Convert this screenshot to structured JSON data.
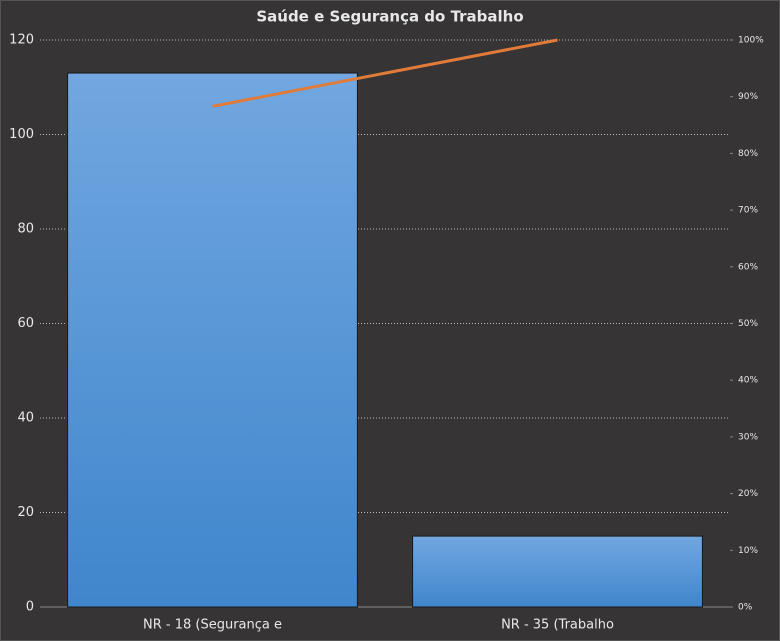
{
  "chart_data": {
    "type": "pareto",
    "title": "Saúde e Segurança do Trabalho",
    "categories": [
      "NR - 18 (Segurança e",
      "NR - 35 (Trabalho"
    ],
    "series": [
      {
        "type": "bar",
        "color": "#5b9bd5",
        "values": [
          113,
          15
        ]
      },
      {
        "type": "line",
        "axis": "y2",
        "color": "#e07b39",
        "values": [
          88.3,
          100
        ]
      }
    ],
    "ylim": [
      0,
      120
    ],
    "yticks": [
      0,
      20,
      40,
      60,
      80,
      100,
      120
    ],
    "y2lim": [
      0,
      100
    ],
    "y2ticks": [
      {
        "value": 0,
        "label": "0%"
      },
      {
        "value": 10,
        "label": "10%"
      },
      {
        "value": 20,
        "label": "20%"
      },
      {
        "value": 30,
        "label": "30%"
      },
      {
        "value": 40,
        "label": "40%"
      },
      {
        "value": 50,
        "label": "50%"
      },
      {
        "value": 60,
        "label": "60%"
      },
      {
        "value": 70,
        "label": "70%"
      },
      {
        "value": 80,
        "label": "80%"
      },
      {
        "value": 90,
        "label": "90%"
      },
      {
        "value": 100,
        "label": "100%"
      }
    ],
    "grid": true
  }
}
